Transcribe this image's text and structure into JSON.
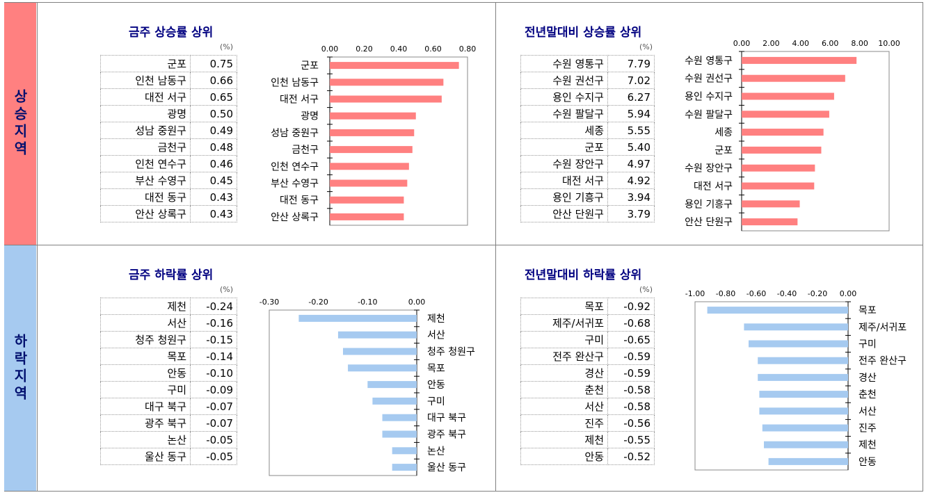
{
  "side_labels": {
    "rise": "상승지역",
    "fall": "하락지역"
  },
  "unit_label": "(%)",
  "colors": {
    "rise_bar": "#ff8080",
    "fall_bar": "#a6caf0",
    "title": "#000080"
  },
  "panels": {
    "weekly_rise": {
      "title": "금주 상승률 상위",
      "rows": [
        {
          "name": "군포",
          "value": "0.75"
        },
        {
          "name": "인천 남동구",
          "value": "0.66"
        },
        {
          "name": "대전 서구",
          "value": "0.65"
        },
        {
          "name": "광명",
          "value": "0.50"
        },
        {
          "name": "성남 중원구",
          "value": "0.49"
        },
        {
          "name": "금천구",
          "value": "0.48"
        },
        {
          "name": "인천 연수구",
          "value": "0.46"
        },
        {
          "name": "부산 수영구",
          "value": "0.45"
        },
        {
          "name": "대전 동구",
          "value": "0.43"
        },
        {
          "name": "안산 상록구",
          "value": "0.43"
        }
      ]
    },
    "yearly_rise": {
      "title": "전년말대비 상승률 상위",
      "rows": [
        {
          "name": "수원 영통구",
          "value": "7.79"
        },
        {
          "name": "수원 권선구",
          "value": "7.02"
        },
        {
          "name": "용인 수지구",
          "value": "6.27"
        },
        {
          "name": "수원 팔달구",
          "value": "5.94"
        },
        {
          "name": "세종",
          "value": "5.55"
        },
        {
          "name": "군포",
          "value": "5.40"
        },
        {
          "name": "수원 장안구",
          "value": "4.97"
        },
        {
          "name": "대전 서구",
          "value": "4.92"
        },
        {
          "name": "용인 기흥구",
          "value": "3.94"
        },
        {
          "name": "안산 단원구",
          "value": "3.79"
        }
      ]
    },
    "weekly_fall": {
      "title": "금주 하락률 상위",
      "rows": [
        {
          "name": "제천",
          "value": "-0.24"
        },
        {
          "name": "서산",
          "value": "-0.16"
        },
        {
          "name": "청주 청원구",
          "value": "-0.15"
        },
        {
          "name": "목포",
          "value": "-0.14"
        },
        {
          "name": "안동",
          "value": "-0.10"
        },
        {
          "name": "구미",
          "value": "-0.09"
        },
        {
          "name": "대구 북구",
          "value": "-0.07"
        },
        {
          "name": "광주 북구",
          "value": "-0.07"
        },
        {
          "name": "논산",
          "value": "-0.05"
        },
        {
          "name": "울산 동구",
          "value": "-0.05"
        }
      ]
    },
    "yearly_fall": {
      "title": "전년말대비 하락률 상위",
      "rows": [
        {
          "name": "목포",
          "value": "-0.92"
        },
        {
          "name": "제주/서귀포",
          "value": "-0.68"
        },
        {
          "name": "구미",
          "value": "-0.65"
        },
        {
          "name": "전주 완산구",
          "value": "-0.59"
        },
        {
          "name": "경산",
          "value": "-0.59"
        },
        {
          "name": "춘천",
          "value": "-0.58"
        },
        {
          "name": "서산",
          "value": "-0.58"
        },
        {
          "name": "진주",
          "value": "-0.56"
        },
        {
          "name": "제천",
          "value": "-0.55"
        },
        {
          "name": "안동",
          "value": "-0.52"
        }
      ]
    }
  },
  "chart_data": [
    {
      "type": "bar",
      "orientation": "horizontal",
      "title": "금주 상승률 상위",
      "categories": [
        "군포",
        "인천 남동구",
        "대전 서구",
        "광명",
        "성남 중원구",
        "금천구",
        "인천 연수구",
        "부산 수영구",
        "대전 동구",
        "안산 상록구"
      ],
      "values": [
        0.75,
        0.66,
        0.65,
        0.5,
        0.49,
        0.48,
        0.46,
        0.45,
        0.43,
        0.43
      ],
      "xlim": [
        0,
        0.8
      ],
      "ticks": [
        "0.00",
        "0.20",
        "0.40",
        "0.60",
        "0.80"
      ],
      "axis_position": "top",
      "labels_side": "left"
    },
    {
      "type": "bar",
      "orientation": "horizontal",
      "title": "전년말대비 상승률 상위",
      "categories": [
        "수원 영통구",
        "수원 권선구",
        "용인 수지구",
        "수원 팔달구",
        "세종",
        "군포",
        "수원 장안구",
        "대전 서구",
        "용인 기흥구",
        "안산 단원구"
      ],
      "values": [
        7.79,
        7.02,
        6.27,
        5.94,
        5.55,
        5.4,
        4.97,
        4.92,
        3.94,
        3.79
      ],
      "xlim": [
        0,
        10
      ],
      "ticks": [
        "0.00",
        "2.00",
        "4.00",
        "6.00",
        "8.00",
        "10.00"
      ],
      "axis_position": "top",
      "labels_side": "left"
    },
    {
      "type": "bar",
      "orientation": "horizontal",
      "title": "금주 하락률 상위",
      "categories": [
        "제천",
        "서산",
        "청주 청원구",
        "목포",
        "안동",
        "구미",
        "대구 북구",
        "광주 북구",
        "논산",
        "울산 동구"
      ],
      "values": [
        -0.24,
        -0.16,
        -0.15,
        -0.14,
        -0.1,
        -0.09,
        -0.07,
        -0.07,
        -0.05,
        -0.05
      ],
      "xlim": [
        -0.3,
        0
      ],
      "ticks": [
        "-0.30",
        "-0.20",
        "-0.10",
        "0.00"
      ],
      "axis_position": "top",
      "labels_side": "right"
    },
    {
      "type": "bar",
      "orientation": "horizontal",
      "title": "전년말대비 하락률 상위",
      "categories": [
        "목포",
        "제주/서귀포",
        "구미",
        "전주 완산구",
        "경산",
        "춘천",
        "서산",
        "진주",
        "제천",
        "안동"
      ],
      "values": [
        -0.92,
        -0.68,
        -0.65,
        -0.59,
        -0.59,
        -0.58,
        -0.58,
        -0.56,
        -0.55,
        -0.52
      ],
      "xlim": [
        -1.0,
        0
      ],
      "ticks": [
        "-1.00",
        "-0.80",
        "-0.60",
        "-0.40",
        "-0.20",
        "0.00"
      ],
      "axis_position": "top",
      "labels_side": "right"
    }
  ]
}
